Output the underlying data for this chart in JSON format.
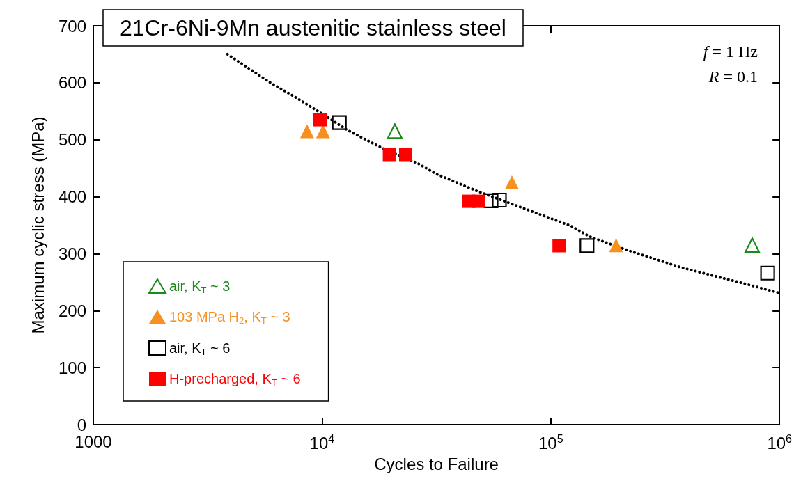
{
  "chart_data": {
    "type": "scatter",
    "title": "21Cr-6Ni-9Mn austenitic stainless steel",
    "xlabel": "Cycles to Failure",
    "ylabel": "Maximum cyclic stress (MPa)",
    "annotations": [
      "f = 1 Hz",
      "R = 0.1"
    ],
    "log": "x",
    "xlim": [
      1000,
      1000000
    ],
    "xticks": [
      {
        "value": 1000,
        "label": "1000"
      },
      {
        "value": 10000,
        "label": "10$^{4}$"
      },
      {
        "value": 100000,
        "label": "10$^{5}$"
      },
      {
        "value": 1000000,
        "label": "10$^{6}$"
      }
    ],
    "ylim": [
      0,
      700
    ],
    "yticks": [
      0,
      100,
      200,
      300,
      400,
      500,
      600,
      700
    ],
    "grid": false,
    "legend": "bottom left",
    "series": [
      {
        "name": "air, K$_{T}$ ~ 3",
        "color": "#1a8a1a",
        "marker": "triangle",
        "x": [
          20800,
          760000
        ],
        "values": [
          515,
          315
        ]
      },
      {
        "name": "103 MPa H$_{2}$, K$_{T}$ ~ 3",
        "color": "#f7901e",
        "marker": "triangle",
        "x": [
          8600,
          10100,
          67600,
          193000
        ],
        "values": [
          515,
          515,
          425,
          315
        ]
      },
      {
        "name": "air, K$_{T}$ ~ 6",
        "color": "#000000",
        "marker": "square",
        "x": [
          11900,
          54800,
          59600,
          144000,
          887000
        ],
        "values": [
          530,
          393,
          394,
          314,
          266
        ]
      },
      {
        "name": "H-precharged, K$_{T}$ ~ 6",
        "color": "#ff0000",
        "marker": "square",
        "x": [
          9800,
          19700,
          23200,
          43800,
          48300,
          108700
        ],
        "values": [
          535,
          474,
          474,
          392,
          392,
          314
        ]
      },
      {
        "type": "line",
        "color": "#000000",
        "marker": "none",
        "line_style": "dotted",
        "x": [
          3860,
          6000,
          7400,
          9600,
          12900,
          18400,
          26100,
          31500,
          47600,
          122000,
          148000,
          213000,
          370000,
          695000,
          1000000
        ],
        "values": [
          650,
          599,
          578,
          550,
          517,
          485,
          459,
          440,
          410,
          349,
          330,
          307,
          276,
          248,
          231
        ]
      }
    ]
  }
}
